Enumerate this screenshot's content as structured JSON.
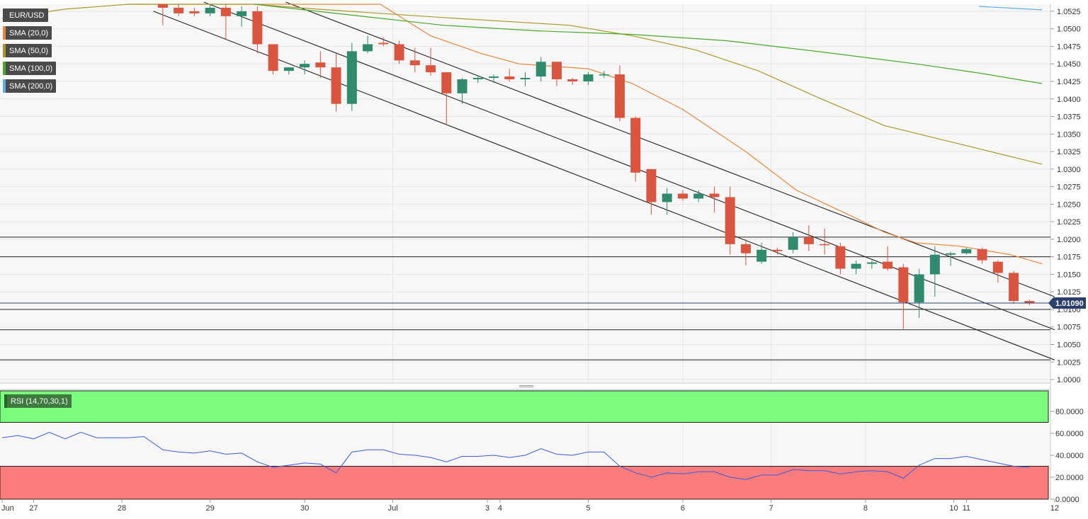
{
  "chart_data": {
    "type": "candlestick",
    "symbol": "EUR/USD",
    "price_axis": {
      "ylim": [
        0.9995,
        1.0535
      ],
      "ticks": [
        1.0,
        1.0025,
        1.005,
        1.0075,
        1.01,
        1.0125,
        1.015,
        1.0175,
        1.02,
        1.0225,
        1.025,
        1.0275,
        1.03,
        1.0325,
        1.035,
        1.0375,
        1.04,
        1.0425,
        1.045,
        1.0475,
        1.05,
        1.0525
      ],
      "tick_labels": [
        "1.0000",
        "1.0025",
        "1.0050",
        "1.0075",
        "1.0100",
        "1.0125",
        "1.0150",
        "1.0175",
        "1.0200",
        "1.0225",
        "1.0250",
        "1.0275",
        "1.0300",
        "1.0325",
        "1.0350",
        "1.0375",
        "1.0400",
        "1.0425",
        "1.0450",
        "1.0475",
        "1.0500",
        "1.0525"
      ],
      "current_price": 1.0109,
      "current_label": "1.01090"
    },
    "x_axis": {
      "xlim": [
        0,
        166
      ],
      "labels": [
        {
          "x": 0,
          "text": "Jun"
        },
        {
          "x": 5,
          "text": "27"
        },
        {
          "x": 19,
          "text": "28"
        },
        {
          "x": 33,
          "text": "29"
        },
        {
          "x": 48,
          "text": "30"
        },
        {
          "x": 62,
          "text": "Jul"
        },
        {
          "x": 77,
          "text": "3"
        },
        {
          "x": 79,
          "text": "4"
        },
        {
          "x": 93,
          "text": "5"
        },
        {
          "x": 108,
          "text": "6"
        },
        {
          "x": 122,
          "text": "7"
        },
        {
          "x": 137,
          "text": "8"
        },
        {
          "x": 151,
          "text": "10"
        },
        {
          "x": 153,
          "text": "11"
        },
        {
          "x": 167,
          "text": "12"
        }
      ],
      "grid_x": [
        62,
        93,
        108,
        122,
        137
      ]
    },
    "candles": [
      {
        "x": 25.5,
        "o": 1.0535,
        "h": 1.054,
        "l": 1.0505,
        "c": 1.053
      },
      {
        "x": 28.0,
        "o": 1.053,
        "h": 1.0538,
        "l": 1.0518,
        "c": 1.0522
      },
      {
        "x": 30.5,
        "o": 1.0525,
        "h": 1.053,
        "l": 1.0518,
        "c": 1.0522
      },
      {
        "x": 33.0,
        "o": 1.0522,
        "h": 1.0535,
        "l": 1.0518,
        "c": 1.053
      },
      {
        "x": 35.5,
        "o": 1.053,
        "h": 1.0535,
        "l": 1.0485,
        "c": 1.0518
      },
      {
        "x": 38.0,
        "o": 1.0518,
        "h": 1.0532,
        "l": 1.0503,
        "c": 1.0525
      },
      {
        "x": 40.5,
        "o": 1.0525,
        "h": 1.0532,
        "l": 1.0465,
        "c": 1.0478
      },
      {
        "x": 43.0,
        "o": 1.0478,
        "h": 1.0478,
        "l": 1.0435,
        "c": 1.044
      },
      {
        "x": 45.5,
        "o": 1.044,
        "h": 1.0445,
        "l": 1.0435,
        "c": 1.0445
      },
      {
        "x": 48.0,
        "o": 1.0445,
        "h": 1.0455,
        "l": 1.0435,
        "c": 1.045
      },
      {
        "x": 50.5,
        "o": 1.0452,
        "h": 1.0468,
        "l": 1.043,
        "c": 1.0445
      },
      {
        "x": 53.0,
        "o": 1.0445,
        "h": 1.0465,
        "l": 1.0382,
        "c": 1.0393
      },
      {
        "x": 55.5,
        "o": 1.0393,
        "h": 1.048,
        "l": 1.0383,
        "c": 1.0468
      },
      {
        "x": 58.0,
        "o": 1.0468,
        "h": 1.049,
        "l": 1.0465,
        "c": 1.0478
      },
      {
        "x": 60.5,
        "o": 1.048,
        "h": 1.0488,
        "l": 1.0475,
        "c": 1.0478
      },
      {
        "x": 63.0,
        "o": 1.0478,
        "h": 1.0483,
        "l": 1.045,
        "c": 1.0455
      },
      {
        "x": 65.5,
        "o": 1.0455,
        "h": 1.0473,
        "l": 1.0438,
        "c": 1.0448
      },
      {
        "x": 68.0,
        "o": 1.0448,
        "h": 1.0473,
        "l": 1.0433,
        "c": 1.0438
      },
      {
        "x": 70.5,
        "o": 1.0438,
        "h": 1.0438,
        "l": 1.0363,
        "c": 1.0408
      },
      {
        "x": 73.0,
        "o": 1.0408,
        "h": 1.043,
        "l": 1.0393,
        "c": 1.0428
      },
      {
        "x": 75.5,
        "o": 1.0428,
        "h": 1.0433,
        "l": 1.0423,
        "c": 1.043
      },
      {
        "x": 78.0,
        "o": 1.043,
        "h": 1.0435,
        "l": 1.0423,
        "c": 1.0432
      },
      {
        "x": 80.5,
        "o": 1.0432,
        "h": 1.0443,
        "l": 1.0425,
        "c": 1.0428
      },
      {
        "x": 83.0,
        "o": 1.0428,
        "h": 1.0438,
        "l": 1.0418,
        "c": 1.043
      },
      {
        "x": 85.5,
        "o": 1.0432,
        "h": 1.046,
        "l": 1.0425,
        "c": 1.0453
      },
      {
        "x": 88.0,
        "o": 1.0453,
        "h": 1.0453,
        "l": 1.0418,
        "c": 1.0428
      },
      {
        "x": 90.5,
        "o": 1.0428,
        "h": 1.043,
        "l": 1.042,
        "c": 1.0425
      },
      {
        "x": 93.0,
        "o": 1.0425,
        "h": 1.0438,
        "l": 1.042,
        "c": 1.0435
      },
      {
        "x": 95.5,
        "o": 1.0435,
        "h": 1.044,
        "l": 1.043,
        "c": 1.0435
      },
      {
        "x": 98.0,
        "o": 1.0435,
        "h": 1.0448,
        "l": 1.0368,
        "c": 1.0373
      },
      {
        "x": 100.5,
        "o": 1.0373,
        "h": 1.0375,
        "l": 1.0282,
        "c": 1.0295
      },
      {
        "x": 103.0,
        "o": 1.03,
        "h": 1.03,
        "l": 1.0235,
        "c": 1.0253
      },
      {
        "x": 105.5,
        "o": 1.0253,
        "h": 1.0273,
        "l": 1.0235,
        "c": 1.0265
      },
      {
        "x": 108.0,
        "o": 1.0265,
        "h": 1.027,
        "l": 1.0255,
        "c": 1.0258
      },
      {
        "x": 110.5,
        "o": 1.0258,
        "h": 1.027,
        "l": 1.0253,
        "c": 1.0265
      },
      {
        "x": 113.0,
        "o": 1.0265,
        "h": 1.0275,
        "l": 1.0238,
        "c": 1.026
      },
      {
        "x": 115.5,
        "o": 1.026,
        "h": 1.0275,
        "l": 1.0178,
        "c": 1.0193
      },
      {
        "x": 118.0,
        "o": 1.0193,
        "h": 1.02,
        "l": 1.0163,
        "c": 1.018
      },
      {
        "x": 120.5,
        "o": 1.0168,
        "h": 1.0195,
        "l": 1.0165,
        "c": 1.0185
      },
      {
        "x": 123.0,
        "o": 1.0185,
        "h": 1.0188,
        "l": 1.0178,
        "c": 1.0183
      },
      {
        "x": 125.5,
        "o": 1.0185,
        "h": 1.021,
        "l": 1.018,
        "c": 1.0203
      },
      {
        "x": 128.0,
        "o": 1.0203,
        "h": 1.022,
        "l": 1.0183,
        "c": 1.0193
      },
      {
        "x": 130.5,
        "o": 1.0193,
        "h": 1.0215,
        "l": 1.0178,
        "c": 1.0192
      },
      {
        "x": 133.0,
        "o": 1.019,
        "h": 1.0195,
        "l": 1.015,
        "c": 1.0158
      },
      {
        "x": 135.5,
        "o": 1.0158,
        "h": 1.017,
        "l": 1.015,
        "c": 1.0165
      },
      {
        "x": 138.0,
        "o": 1.0165,
        "h": 1.017,
        "l": 1.0158,
        "c": 1.0167
      },
      {
        "x": 140.5,
        "o": 1.0168,
        "h": 1.019,
        "l": 1.0155,
        "c": 1.0158
      },
      {
        "x": 143.0,
        "o": 1.016,
        "h": 1.0165,
        "l": 1.0072,
        "c": 1.011
      },
      {
        "x": 145.5,
        "o": 1.011,
        "h": 1.0158,
        "l": 1.0088,
        "c": 1.015
      },
      {
        "x": 148.0,
        "o": 1.015,
        "h": 1.019,
        "l": 1.0118,
        "c": 1.0178
      },
      {
        "x": 150.5,
        "o": 1.0178,
        "h": 1.0182,
        "l": 1.0162,
        "c": 1.018
      },
      {
        "x": 153.0,
        "o": 1.018,
        "h": 1.0188,
        "l": 1.0178,
        "c": 1.0186
      },
      {
        "x": 155.5,
        "o": 1.0186,
        "h": 1.0188,
        "l": 1.0165,
        "c": 1.017
      },
      {
        "x": 158.0,
        "o": 1.0168,
        "h": 1.017,
        "l": 1.0138,
        "c": 1.0152
      },
      {
        "x": 160.5,
        "o": 1.0152,
        "h": 1.0155,
        "l": 1.0108,
        "c": 1.0112
      },
      {
        "x": 163.0,
        "o": 1.0112,
        "h": 1.0114,
        "l": 1.0106,
        "c": 1.0109
      }
    ],
    "sma": [
      {
        "name": "SMA (20,0)",
        "color": "#e8863a",
        "points": [
          [
            20,
            1.0535
          ],
          [
            60,
            1.054
          ],
          [
            68,
            1.049
          ],
          [
            76,
            1.0465
          ],
          [
            82,
            1.045
          ],
          [
            93,
            1.0443
          ],
          [
            100,
            1.0422
          ],
          [
            108,
            1.0385
          ],
          [
            118,
            1.0325
          ],
          [
            126,
            1.027
          ],
          [
            135,
            1.0232
          ],
          [
            140,
            1.021
          ],
          [
            145,
            1.0195
          ],
          [
            152,
            1.019
          ],
          [
            160,
            1.0178
          ],
          [
            165,
            1.0165
          ]
        ]
      },
      {
        "name": "SMA (50,0)",
        "color": "#a89a2a",
        "points": [
          [
            0,
            1.0515
          ],
          [
            10,
            1.0528
          ],
          [
            20,
            1.0535
          ],
          [
            40,
            1.054
          ],
          [
            50,
            1.0528
          ],
          [
            70,
            1.0516
          ],
          [
            90,
            1.0505
          ],
          [
            100,
            1.049
          ],
          [
            110,
            1.047
          ],
          [
            120,
            1.044
          ],
          [
            130,
            1.04
          ],
          [
            140,
            1.0362
          ],
          [
            150,
            1.034
          ],
          [
            165,
            1.0307
          ]
        ]
      },
      {
        "name": "SMA (100,0)",
        "color": "#4aa82a",
        "points": [
          [
            40,
            1.054
          ],
          [
            55,
            1.052
          ],
          [
            70,
            1.0505
          ],
          [
            85,
            1.0497
          ],
          [
            100,
            1.0492
          ],
          [
            115,
            1.0483
          ],
          [
            130,
            1.0467
          ],
          [
            145,
            1.045
          ],
          [
            155,
            1.0437
          ],
          [
            165,
            1.0422
          ]
        ]
      },
      {
        "name": "SMA (200,0)",
        "color": "#5ab0e0",
        "points": [
          [
            155,
            1.0532
          ],
          [
            165,
            1.0527
          ]
        ]
      }
    ],
    "horizontal_levels": [
      1.0203,
      1.0175,
      1.01,
      1.0071,
      1.0028
    ],
    "trendlines": [
      {
        "from": [
          45,
          1.0538
        ],
        "to": [
          167,
          1.0118
        ]
      },
      {
        "from": [
          32,
          1.0538
        ],
        "to": [
          167,
          1.0071
        ]
      },
      {
        "from": [
          24,
          1.0525
        ],
        "to": [
          167,
          1.0028
        ]
      }
    ],
    "rsi": {
      "label": "RSI (14,70,30,1)",
      "ylim": [
        0,
        100
      ],
      "ticks": [
        0,
        20,
        40,
        60,
        80
      ],
      "tick_labels": [
        "0.0000",
        "20.0000",
        "40.0000",
        "60.0000",
        "80.0000"
      ],
      "overbought": 70,
      "oversold": 30,
      "zone_end_x": 166,
      "points": [
        [
          0,
          56
        ],
        [
          2.5,
          58
        ],
        [
          5,
          55
        ],
        [
          7.5,
          61
        ],
        [
          10,
          55
        ],
        [
          12.5,
          61
        ],
        [
          15,
          56
        ],
        [
          17.5,
          56
        ],
        [
          20,
          56
        ],
        [
          22.5,
          57
        ],
        [
          25.5,
          45
        ],
        [
          28,
          43
        ],
        [
          30.5,
          42
        ],
        [
          33,
          44
        ],
        [
          35.5,
          41
        ],
        [
          38,
          42
        ],
        [
          40.5,
          34
        ],
        [
          43,
          29
        ],
        [
          45.5,
          31
        ],
        [
          48,
          33
        ],
        [
          50.5,
          32
        ],
        [
          53,
          24
        ],
        [
          55.5,
          43
        ],
        [
          58,
          45
        ],
        [
          60.5,
          45
        ],
        [
          63,
          41
        ],
        [
          65.5,
          40
        ],
        [
          68,
          38
        ],
        [
          70.5,
          34
        ],
        [
          73,
          39
        ],
        [
          75.5,
          39
        ],
        [
          78,
          40
        ],
        [
          80.5,
          38
        ],
        [
          83,
          40
        ],
        [
          85.5,
          46
        ],
        [
          88,
          41
        ],
        [
          90.5,
          40
        ],
        [
          93,
          43
        ],
        [
          95.5,
          43
        ],
        [
          98,
          30
        ],
        [
          100.5,
          24
        ],
        [
          103,
          20
        ],
        [
          105.5,
          24
        ],
        [
          108,
          23
        ],
        [
          110.5,
          25
        ],
        [
          113,
          25
        ],
        [
          115.5,
          20
        ],
        [
          118,
          18
        ],
        [
          120.5,
          22
        ],
        [
          123,
          22
        ],
        [
          125.5,
          27
        ],
        [
          128,
          26
        ],
        [
          130.5,
          26
        ],
        [
          133,
          23
        ],
        [
          135.5,
          25
        ],
        [
          138,
          26
        ],
        [
          140.5,
          25
        ],
        [
          143,
          19
        ],
        [
          145.5,
          31
        ],
        [
          148,
          37
        ],
        [
          150.5,
          37
        ],
        [
          153,
          39
        ],
        [
          155.5,
          36
        ],
        [
          158,
          33
        ],
        [
          160.5,
          30
        ],
        [
          163,
          29
        ]
      ]
    },
    "colors": {
      "bull": "#2f8a6e",
      "bear": "#d9553f",
      "rsi_line": "#3b5bdb",
      "overbought_zone": "#7cfc7c",
      "oversold_zone": "#fa7c7c",
      "price_tag": "#2a3f6a"
    }
  },
  "legend": {
    "items": [
      {
        "label": "EUR/USD",
        "color": "#4a4a4a"
      },
      {
        "label": "SMA (20,0)",
        "color": "#e8863a"
      },
      {
        "label": "SMA (50,0)",
        "color": "#a89a2a"
      },
      {
        "label": "SMA (100,0)",
        "color": "#4aa82a"
      },
      {
        "label": "SMA (200,0)",
        "color": "#5ab0e0"
      }
    ]
  }
}
